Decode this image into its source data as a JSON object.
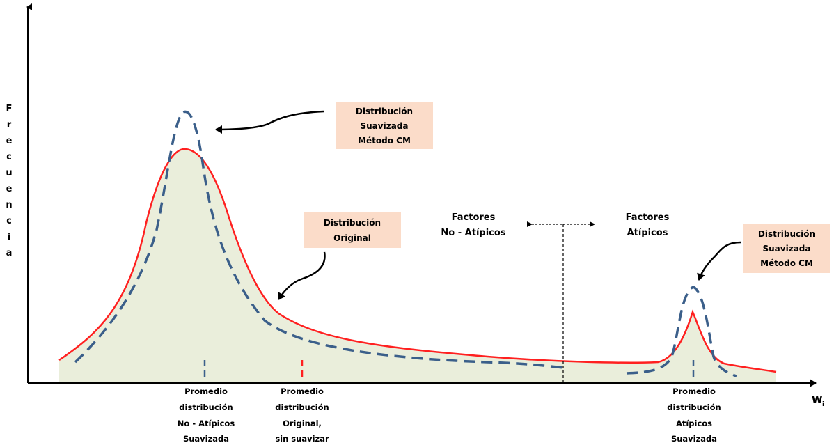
{
  "axes": {
    "y_label_letters": [
      "F",
      "r",
      "e",
      "c",
      "u",
      "e",
      "n",
      "c",
      "i",
      "a"
    ],
    "x_label_main": "W",
    "x_label_sub": "i"
  },
  "callouts": {
    "smoothed_left": [
      "Distribución",
      "Suavizada",
      "Método CM"
    ],
    "original": [
      "Distribución",
      "Original"
    ],
    "smoothed_right": [
      "Distribución",
      "Suavizada",
      "Método CM"
    ]
  },
  "regions": {
    "non_atypical": [
      "Factores",
      "No - Atípicos"
    ],
    "atypical": [
      "Factores",
      "Atípicos"
    ]
  },
  "bottom_labels": {
    "mean_non_atypical_smoothed": [
      "Promedio",
      "distribución",
      "No - Atípicos",
      "Suavizada"
    ],
    "mean_original": [
      "Promedio",
      "distribución",
      "Original,",
      "sin suavizar"
    ],
    "mean_atypical_smoothed": [
      "Promedio",
      "distribución",
      "Atípicos",
      "Suavizada"
    ]
  },
  "colors": {
    "original_curve": "#ff2020",
    "smoothed_curve": "#3b5f8a",
    "fill": "#eaeedb",
    "callout_bg": "#fbdcc9",
    "axis": "#000000"
  }
}
